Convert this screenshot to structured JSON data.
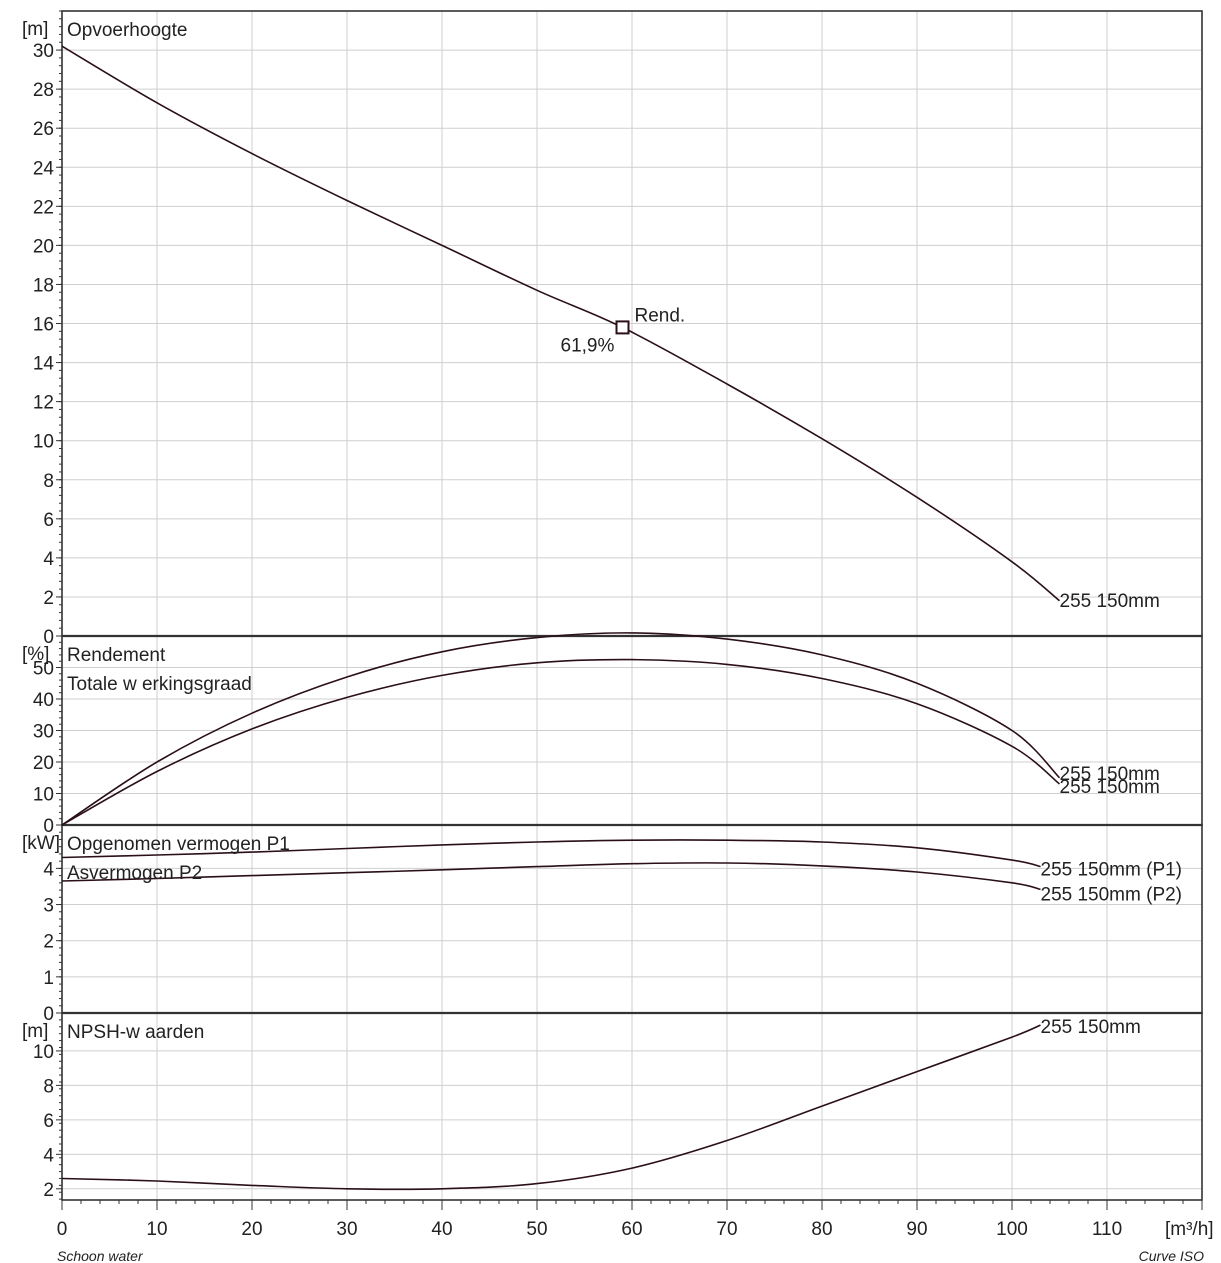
{
  "chart_data": [
    {
      "type": "line",
      "title": "Opvoerhoogte",
      "ylabel": "[m]",
      "ylim": [
        0,
        32
      ],
      "yticks": [
        0,
        2,
        4,
        6,
        8,
        10,
        12,
        14,
        16,
        18,
        20,
        22,
        24,
        26,
        28,
        30
      ],
      "grid": true,
      "series": [
        {
          "name": "255 150mm",
          "x": [
            0,
            10,
            20,
            30,
            40,
            50,
            59,
            70,
            80,
            90,
            100,
            105
          ],
          "y": [
            30.2,
            27.3,
            24.7,
            22.3,
            20.0,
            17.7,
            15.8,
            12.9,
            10.1,
            7.1,
            3.8,
            1.8
          ]
        }
      ],
      "annotations": [
        {
          "text": "Rend.",
          "x": 59,
          "y": 15.8
        },
        {
          "text": "61,9%",
          "x": 59,
          "y": 15.8
        }
      ]
    },
    {
      "type": "line",
      "title": "Rendement",
      "subtitle": "Totale w erkingsgraad",
      "ylabel": "[%]",
      "ylim": [
        0,
        60
      ],
      "yticks": [
        0,
        10,
        20,
        30,
        40,
        50
      ],
      "grid": true,
      "series": [
        {
          "name": "255 150mm",
          "x": [
            0,
            10,
            20,
            30,
            40,
            50,
            60,
            70,
            80,
            90,
            100,
            105
          ],
          "y": [
            0,
            20.0,
            35.5,
            47.0,
            55.0,
            59.5,
            61.0,
            59.0,
            54.0,
            45.0,
            30.0,
            15.0
          ]
        },
        {
          "name": "255 150mm",
          "x": [
            0,
            10,
            20,
            30,
            40,
            50,
            60,
            70,
            80,
            90,
            100,
            105
          ],
          "y": [
            0,
            17.0,
            30.5,
            40.5,
            47.5,
            51.5,
            52.5,
            51.0,
            46.5,
            38.5,
            25.0,
            13.0
          ]
        }
      ]
    },
    {
      "type": "line",
      "title": "Opgenomen vermogen P1",
      "subtitle": "Asvermogen P2",
      "ylabel": "[kW]",
      "ylim": [
        0,
        5.2
      ],
      "yticks": [
        0,
        1,
        2,
        3,
        4
      ],
      "grid": true,
      "series": [
        {
          "name": "255 150mm (P1)",
          "x": [
            0,
            10,
            20,
            30,
            40,
            50,
            60,
            70,
            80,
            90,
            100,
            103
          ],
          "y": [
            4.3,
            4.37,
            4.45,
            4.55,
            4.65,
            4.73,
            4.78,
            4.78,
            4.73,
            4.57,
            4.23,
            4.05
          ]
        },
        {
          "name": "255 150mm (P2)",
          "x": [
            0,
            10,
            20,
            30,
            40,
            50,
            60,
            70,
            80,
            90,
            100,
            103
          ],
          "y": [
            3.65,
            3.72,
            3.8,
            3.88,
            3.96,
            4.05,
            4.13,
            4.15,
            4.07,
            3.9,
            3.6,
            3.42
          ]
        }
      ]
    },
    {
      "type": "line",
      "title": "NPSH-w aarden",
      "ylabel": "[m]",
      "ylim": [
        0,
        12.2
      ],
      "yticks": [
        2,
        4,
        6,
        8,
        10
      ],
      "grid": true,
      "xlabel": "[m³/h]",
      "xlim": [
        0,
        120
      ],
      "xticks": [
        0,
        10,
        20,
        30,
        40,
        50,
        60,
        70,
        80,
        90,
        100,
        110
      ],
      "series": [
        {
          "name": "255 150mm",
          "x": [
            0,
            10,
            20,
            30,
            40,
            50,
            60,
            70,
            80,
            90,
            100,
            103
          ],
          "y": [
            2.6,
            2.45,
            2.2,
            2.0,
            2.0,
            2.3,
            3.2,
            4.8,
            6.8,
            8.8,
            10.8,
            11.5
          ]
        }
      ]
    }
  ],
  "footer": {
    "left": "Schoon water",
    "right": "Curve ISO"
  }
}
